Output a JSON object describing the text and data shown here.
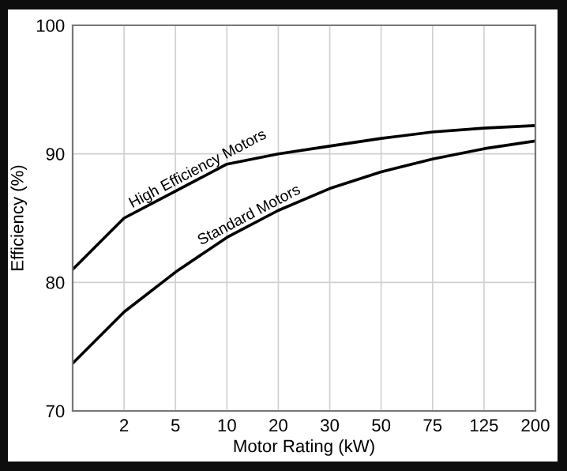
{
  "chart_data": {
    "type": "line",
    "xlabel": "Motor Rating (kW)",
    "ylabel": "Efficiency (%)",
    "categories": [
      null,
      "2",
      "5",
      "10",
      "20",
      "30",
      "50",
      "75",
      "125",
      "200"
    ],
    "series": [
      {
        "name": "High Efficiency Motors",
        "color": "#000000",
        "values": [
          81.0,
          85.0,
          87.1,
          89.2,
          90.0,
          90.6,
          91.2,
          91.7,
          92.0,
          92.2
        ]
      },
      {
        "name": "Standard Motors",
        "color": "#000000",
        "values": [
          73.7,
          77.7,
          80.8,
          83.5,
          85.6,
          87.3,
          88.6,
          89.6,
          90.4,
          91.0
        ]
      }
    ],
    "ylim": [
      70,
      100
    ],
    "yticks": [
      70,
      80,
      90,
      100
    ],
    "grid": true,
    "legend": false,
    "marker": "none",
    "line_style": "solid"
  }
}
